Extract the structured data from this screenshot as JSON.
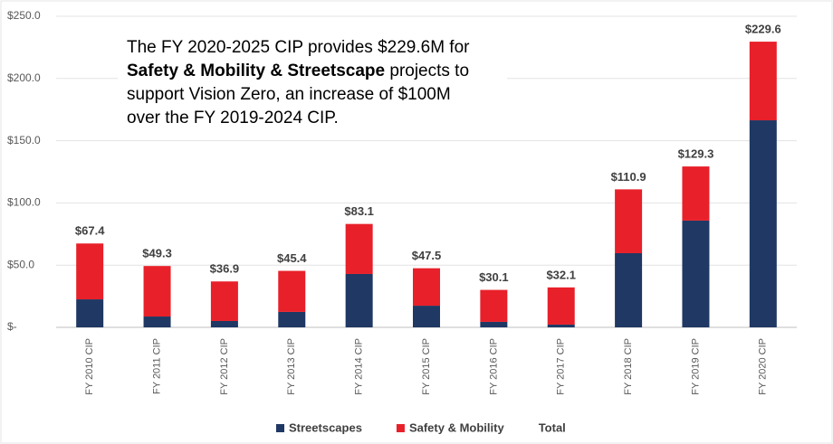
{
  "chart_data": {
    "type": "bar",
    "stacked": true,
    "categories": [
      "FY 2010 CIP",
      "FY 2011 CIP",
      "FY 2012 CIP",
      "FY 2013 CIP",
      "FY 2014 CIP",
      "FY 2015 CIP",
      "FY 2016 CIP",
      "FY 2017 CIP",
      "FY 2018 CIP",
      "FY 2019 CIP",
      "FY 2020 CIP"
    ],
    "series": [
      {
        "name": "Streetscapes",
        "color": "#1f3864",
        "values": [
          22.5,
          8.7,
          5.1,
          12.4,
          42.9,
          17.4,
          4.4,
          2.2,
          59.6,
          85.8,
          166.4
        ]
      },
      {
        "name": "Safety & Mobility",
        "color": "#e8202a",
        "values": [
          44.9,
          40.6,
          31.8,
          33.0,
          40.2,
          30.1,
          25.7,
          29.9,
          51.3,
          43.5,
          63.2
        ]
      },
      {
        "name": "Total",
        "values": [
          67.4,
          49.3,
          36.9,
          45.4,
          83.1,
          47.5,
          30.1,
          32.1,
          110.9,
          129.3,
          229.6
        ],
        "value_labels": [
          "$67.4",
          "$49.3",
          "$36.9",
          "$45.4",
          "$83.1",
          "$47.5",
          "$30.1",
          "$32.1",
          "$110.9",
          "$129.3",
          "$229.6"
        ]
      }
    ],
    "ylim": [
      0,
      250
    ],
    "yticks": [
      {
        "value": 0,
        "label": "$-"
      },
      {
        "value": 50,
        "label": "$50.0"
      },
      {
        "value": 100,
        "label": "$100.0"
      },
      {
        "value": 150,
        "label": "$150.0"
      },
      {
        "value": 200,
        "label": "$200.0"
      },
      {
        "value": 250,
        "label": "$250.0"
      }
    ],
    "grid": true,
    "legend": "bottom",
    "annotation": [
      [
        "The FY 2020-2025 CIP provides $229.6M for"
      ],
      [
        "Safety & Mobility & Streetscape",
        " projects to"
      ],
      [
        "support Vision Zero, an increase of $100M"
      ],
      [
        "over the FY 2019-2024 CIP."
      ]
    ]
  }
}
